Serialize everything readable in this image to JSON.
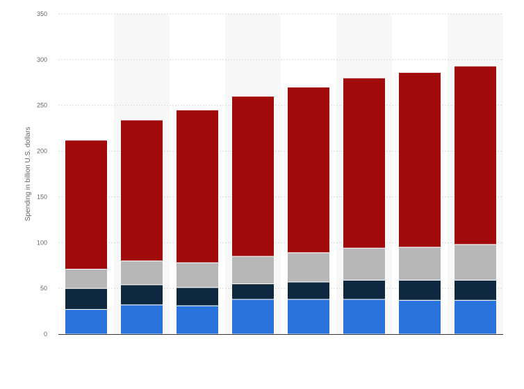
{
  "chart_data": {
    "type": "bar",
    "stacked": true,
    "categories": [
      "",
      "",
      "",
      "",
      "",
      "",
      "",
      ""
    ],
    "ylabel": "Spending in billion U.S. dollars",
    "ylim": [
      0,
      350
    ],
    "yticks": [
      0,
      50,
      100,
      150,
      200,
      250,
      300,
      350
    ],
    "grid": true,
    "legend": "none",
    "series": [
      {
        "color": "#2874dc",
        "values": [
          27,
          32,
          31,
          38,
          38,
          38,
          37,
          37
        ]
      },
      {
        "color": "#0e2840",
        "values": [
          23,
          22,
          20,
          17,
          19,
          21,
          22,
          22
        ]
      },
      {
        "color": "#b7b7b7",
        "values": [
          21,
          26,
          27,
          30,
          32,
          35,
          36,
          39
        ]
      },
      {
        "color": "#a00a0a",
        "values": [
          141,
          154,
          167,
          175,
          181,
          186,
          191,
          195
        ]
      }
    ]
  }
}
